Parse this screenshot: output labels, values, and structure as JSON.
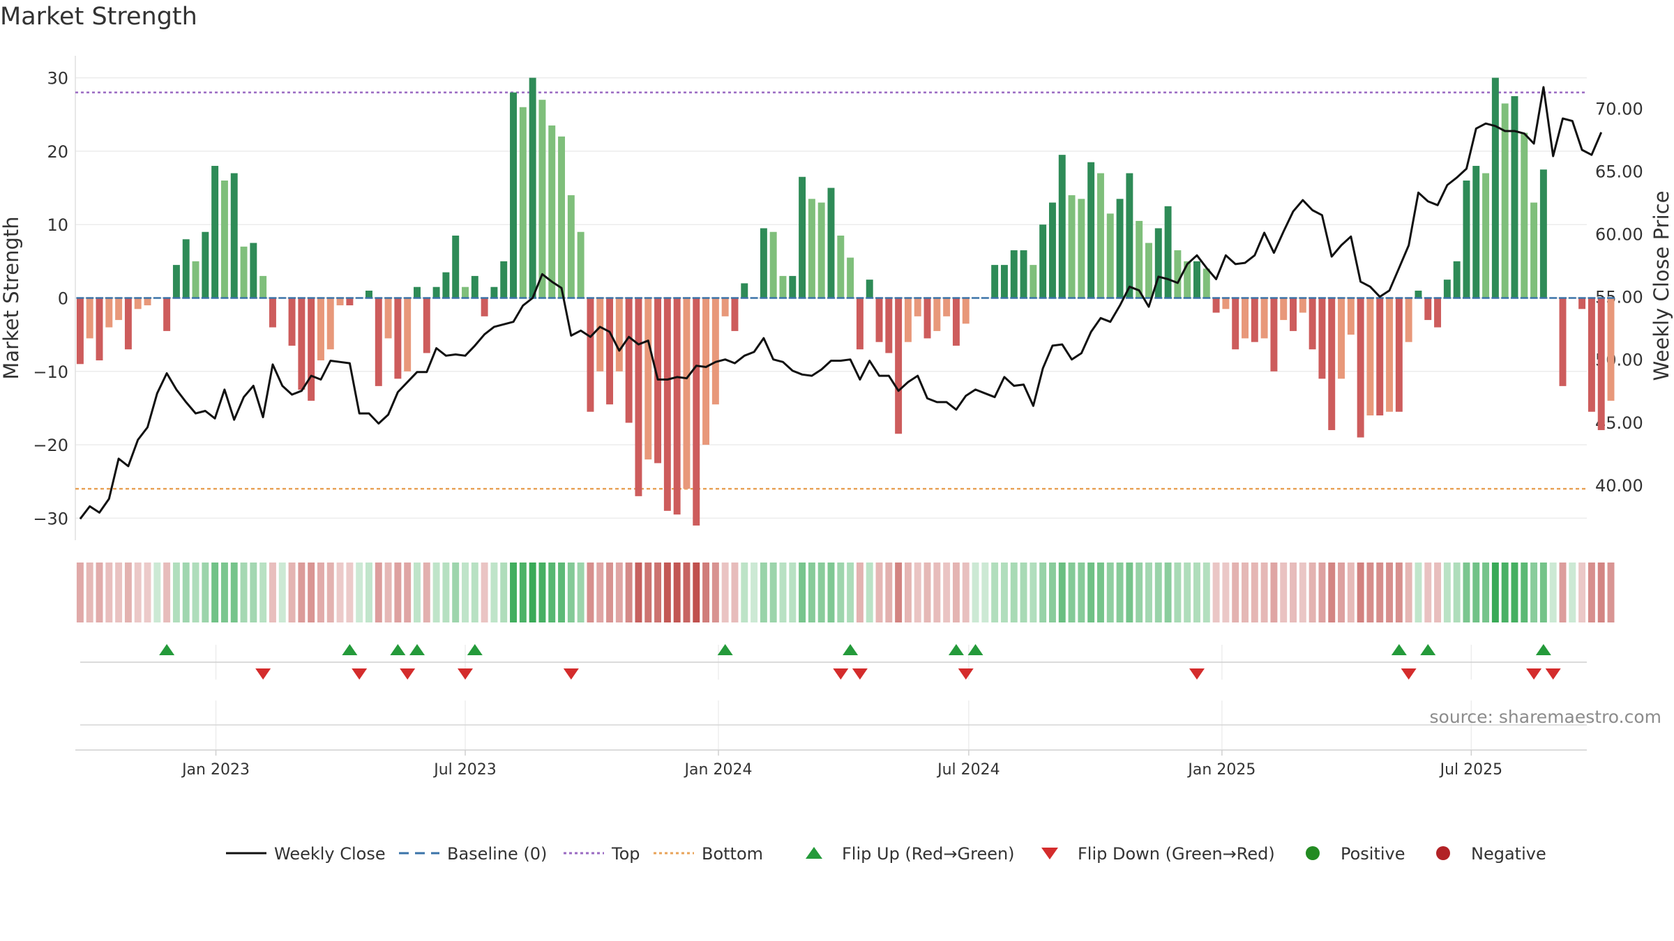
{
  "chart_data": {
    "type": "bar",
    "title": "Market Strength",
    "source": "source: sharemaestro.com",
    "ylabel_left": "Market Strength",
    "ylabel_right": "Weekly Close Price",
    "ylim_left": [
      -33,
      33
    ],
    "ylim_right": [
      35.6,
      74.2
    ],
    "left_ticks": [
      30,
      20,
      10,
      0,
      -10,
      -20,
      -30
    ],
    "left_tick_labels": [
      "30",
      "20",
      "10",
      "0",
      "−10",
      "−20",
      "−30"
    ],
    "right_ticks": [
      70,
      65,
      60,
      55,
      50,
      45,
      40
    ],
    "right_tick_labels": [
      "70.00",
      "65.00",
      "60.00",
      "55.00",
      "50.00",
      "45.00",
      "40.00"
    ],
    "top_level": 28,
    "bottom_level": -26,
    "x_start_week": 0,
    "x_end_week": 157,
    "x_ticks": [
      {
        "label": "Jan 2023",
        "week": 14.6
      },
      {
        "label": "Jul 2023",
        "week": 40.5
      },
      {
        "label": "Jan 2024",
        "week": 66.8
      },
      {
        "label": "Jul 2024",
        "week": 92.8
      },
      {
        "label": "Jan 2025",
        "week": 119.1
      },
      {
        "label": "Jul 2025",
        "week": 145.0
      }
    ],
    "strength": [
      -9,
      -5.5,
      -8.5,
      -4,
      -3,
      -7,
      -1.5,
      -1,
      0,
      -4.5,
      4.5,
      8,
      5,
      9,
      18,
      16,
      17,
      7,
      7.5,
      3,
      -4,
      0,
      -6.5,
      -12.5,
      -14,
      -8.5,
      -7,
      -1,
      -1,
      0,
      1,
      -12,
      -5.5,
      -11,
      -10,
      1.5,
      -7.5,
      1.5,
      3.5,
      8.5,
      1.5,
      3,
      -2.5,
      1.5,
      5,
      28,
      26,
      30,
      27,
      23.5,
      22,
      14,
      9,
      -15.5,
      -10,
      -14.5,
      -10,
      -17,
      -27,
      -22,
      -22.5,
      -29,
      -29.5,
      -26,
      -31,
      -20,
      -14.5,
      -2.5,
      -4.5,
      2,
      0,
      9.5,
      9,
      3,
      3,
      16.5,
      13.5,
      13,
      15,
      8.5,
      5.5,
      -7,
      2.5,
      -6,
      -7.5,
      -18.5,
      -6,
      -2.5,
      -5.5,
      -4.5,
      -2.5,
      -6.5,
      -3.5,
      0,
      0,
      4.5,
      4.5,
      6.5,
      6.5,
      4.5,
      10,
      13,
      19.5,
      14,
      13.5,
      18.5,
      17,
      11.5,
      13.5,
      17,
      10.5,
      7.5,
      9.5,
      12.5,
      6.5,
      5,
      5,
      4,
      -2,
      -1.5,
      -7,
      -5.5,
      -6,
      -5.5,
      -10,
      -3,
      -4.5,
      -2,
      -7,
      -11,
      -18,
      -11,
      -5,
      -19,
      -16,
      -16,
      -15.5,
      -15.5,
      -6,
      1,
      -3,
      -4,
      2.5,
      5,
      16,
      18,
      17,
      30,
      26.5,
      27.5,
      22.5,
      13,
      17.5,
      0,
      -12,
      0,
      -1.5,
      -15.5,
      -18,
      -14
    ],
    "weekly_close": [
      37.3,
      38.3,
      37.8,
      38.9,
      42.1,
      41.5,
      43.6,
      44.6,
      47.3,
      48.9,
      47.6,
      46.6,
      45.7,
      45.9,
      45.3,
      47.6,
      45.2,
      47.0,
      47.9,
      45.4,
      49.6,
      47.9,
      47.2,
      47.5,
      48.7,
      48.4,
      49.9,
      49.8,
      49.7,
      45.7,
      45.7,
      44.9,
      45.6,
      47.4,
      48.2,
      49.0,
      49.0,
      50.9,
      50.3,
      50.4,
      50.3,
      51.1,
      52.0,
      52.6,
      52.8,
      53.0,
      54.3,
      54.9,
      56.8,
      56.2,
      55.7,
      51.9,
      52.3,
      51.8,
      52.6,
      52.2,
      50.7,
      51.8,
      51.2,
      51.5,
      48.4,
      48.4,
      48.6,
      48.5,
      49.5,
      49.4,
      49.8,
      50.0,
      49.7,
      50.3,
      50.6,
      51.7,
      50.0,
      49.8,
      49.1,
      48.8,
      48.7,
      49.2,
      49.9,
      49.9,
      50.0,
      48.4,
      49.9,
      48.7,
      48.7,
      47.5,
      48.2,
      48.7,
      46.9,
      46.6,
      46.6,
      46.0,
      47.1,
      47.6,
      47.3,
      47.0,
      48.6,
      47.9,
      48.0,
      46.3,
      49.3,
      51.1,
      51.2,
      50.0,
      50.5,
      52.2,
      53.3,
      53.0,
      54.3,
      55.8,
      55.5,
      54.2,
      56.6,
      56.4,
      56.1,
      57.6,
      58.3,
      57.3,
      56.4,
      58.3,
      57.6,
      57.7,
      58.3,
      60.1,
      58.5,
      60.2,
      61.8,
      62.7,
      61.9,
      61.5,
      58.2,
      59.1,
      59.8,
      56.2,
      55.8,
      55.0,
      55.5,
      57.3,
      59.1,
      63.3,
      62.6,
      62.3,
      63.9,
      64.5,
      65.2,
      68.4,
      68.8,
      68.6,
      68.2,
      68.2,
      68.0,
      67.2,
      71.7,
      66.2,
      69.2,
      69.0,
      66.7,
      66.3,
      68.1
    ],
    "flip_up_weeks": [
      9,
      28,
      33,
      35,
      41,
      67,
      80,
      91,
      93,
      137,
      140,
      152
    ],
    "flip_down_weeks": [
      19,
      29,
      34,
      40,
      51,
      79,
      81,
      92,
      116,
      138,
      151,
      153
    ],
    "legend": [
      {
        "label": "Weekly Close",
        "kind": "solid-line",
        "color": "#111111"
      },
      {
        "label": "Baseline (0)",
        "kind": "dashed-line",
        "color": "#3a73a8"
      },
      {
        "label": "Top",
        "kind": "dotted-line",
        "color": "#9a6ac2"
      },
      {
        "label": "Bottom",
        "kind": "dotted-line",
        "color": "#e8a358"
      },
      {
        "label": "Flip Up (Red→Green)",
        "kind": "triangle-up",
        "color": "#249a3a"
      },
      {
        "label": "Flip Down (Green→Red)",
        "kind": "triangle-down",
        "color": "#d42c2c"
      },
      {
        "label": "Positive",
        "kind": "dot",
        "color": "#238b22"
      },
      {
        "label": "Negative",
        "kind": "dot",
        "color": "#b22226"
      }
    ],
    "colors": {
      "pos_dark": "#2e8b57",
      "pos_light": "#7fbf7b",
      "neg_dark": "#cd5c5c",
      "neg_light": "#e8987a",
      "price_line": "#111111",
      "baseline": "#3a73a8",
      "top_line": "#9a6ac2",
      "bottom_line": "#e8a358",
      "flip_up": "#249a3a",
      "flip_down": "#d42c2c"
    }
  }
}
